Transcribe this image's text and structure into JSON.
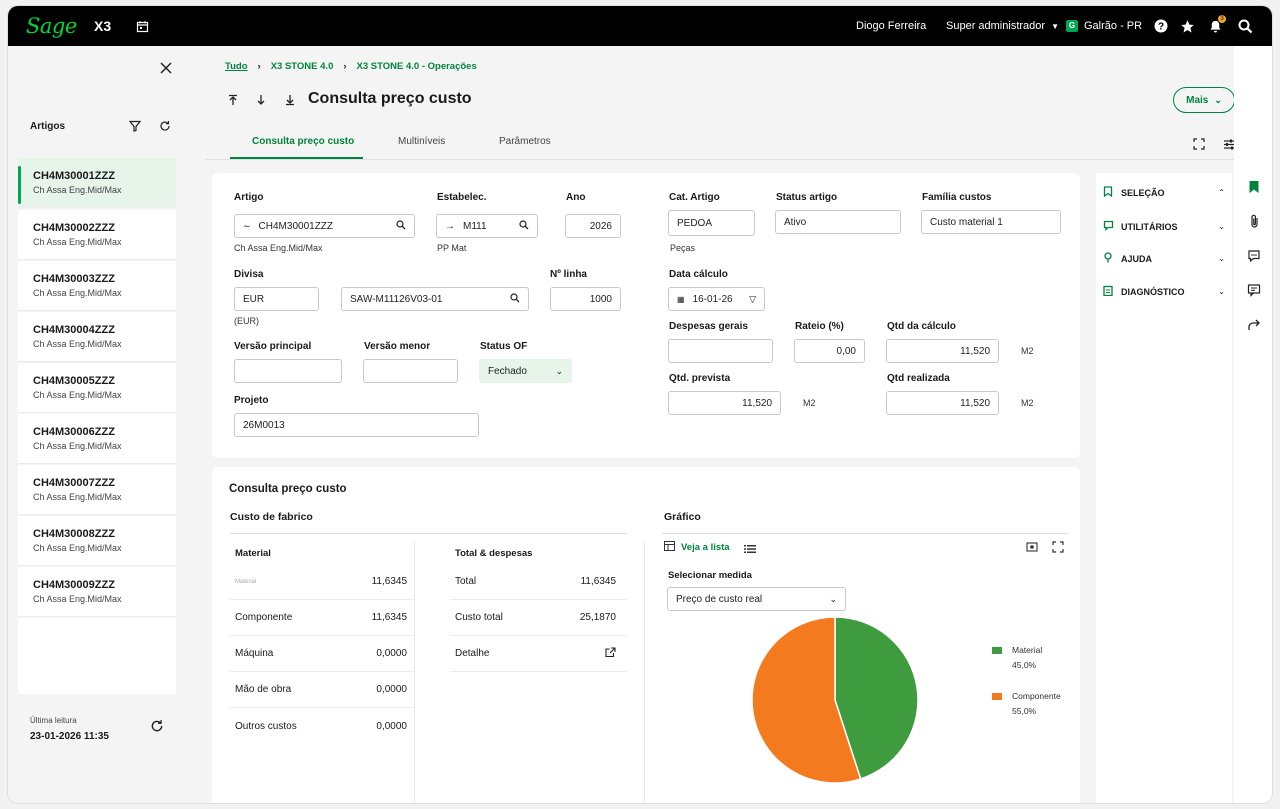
{
  "topbar": {
    "logo": "Sage",
    "product": "X3",
    "user": "Diogo Ferreira",
    "role": "Super administrador",
    "company_badge": "G",
    "company": "Galrão - PR",
    "notification_count": "3"
  },
  "sidebar": {
    "title": "Artigos",
    "items": [
      {
        "code": "CH4M30001ZZZ",
        "desc": "Ch Assa Eng.Mid/Max"
      },
      {
        "code": "CH4M30002ZZZ",
        "desc": "Ch Assa Eng.Mid/Max"
      },
      {
        "code": "CH4M30003ZZZ",
        "desc": "Ch Assa Eng.Mid/Max"
      },
      {
        "code": "CH4M30004ZZZ",
        "desc": "Ch Assa Eng.Mid/Max"
      },
      {
        "code": "CH4M30005ZZZ",
        "desc": "Ch Assa Eng.Mid/Max"
      },
      {
        "code": "CH4M30006ZZZ",
        "desc": "Ch Assa Eng.Mid/Max"
      },
      {
        "code": "CH4M30007ZZZ",
        "desc": "Ch Assa Eng.Mid/Max"
      },
      {
        "code": "CH4M30008ZZZ",
        "desc": "Ch Assa Eng.Mid/Max"
      },
      {
        "code": "CH4M30009ZZZ",
        "desc": "Ch Assa Eng.Mid/Max"
      }
    ],
    "last_read_label": "Última leitura",
    "last_read_value": "23-01-2026 11:35"
  },
  "breadcrumb": [
    "Tudo",
    "X3 STONE 4.0",
    "X3 STONE 4.0 - Operações"
  ],
  "page_title": "Consulta preço custo",
  "more_button": "Mais",
  "tabs": [
    "Consulta preço custo",
    "Multiníveis",
    "Parâmetros"
  ],
  "form": {
    "artigo": {
      "label": "Artigo",
      "value": "CH4M30001ZZZ",
      "sub": "Ch Assa Eng.Mid/Max"
    },
    "estabelec": {
      "label": "Estabelec.",
      "value": "M111",
      "sub": "PP Mat"
    },
    "ano": {
      "label": "Ano",
      "value": "2026"
    },
    "cat_artigo": {
      "label": "Cat. Artigo",
      "value": "PEDOA",
      "sub": "Peças"
    },
    "status_artigo": {
      "label": "Status artigo",
      "value": "Ativo"
    },
    "familia_custos": {
      "label": "Família custos",
      "value": "Custo material 1"
    },
    "divisa": {
      "label": "Divisa",
      "value": "EUR",
      "sub": "(EUR)"
    },
    "divisa_ref": {
      "value": "SAW-M11126V03-01"
    },
    "n_linha": {
      "label": "Nº linha",
      "value": "1000"
    },
    "data_calculo": {
      "label": "Data cálculo",
      "value": "16-01-26"
    },
    "versao_principal": {
      "label": "Versão principal",
      "value": ""
    },
    "versao_menor": {
      "label": "Versão menor",
      "value": ""
    },
    "status_of": {
      "label": "Status OF",
      "value": "Fechado"
    },
    "projeto": {
      "label": "Projeto",
      "value": "26M0013"
    },
    "despesas_gerais": {
      "label": "Despesas gerais",
      "value": ""
    },
    "rateio": {
      "label": "Rateio (%)",
      "value": "0,00"
    },
    "qtd_calculo": {
      "label": "Qtd da cálculo",
      "value": "11,520",
      "unit": "M2"
    },
    "qtd_prevista": {
      "label": "Qtd. prevista",
      "value": "11,520",
      "unit": "M2"
    },
    "qtd_realizada": {
      "label": "Qtd realizada",
      "value": "11,520",
      "unit": "M2"
    }
  },
  "panel": {
    "title": "Consulta preço custo",
    "custo_fabrico": "Custo de fabrico",
    "material_header": "Material",
    "material_rows": [
      {
        "label": "Material",
        "value": "11,6345"
      },
      {
        "label": "Componente",
        "value": "11,6345"
      },
      {
        "label": "Máquina",
        "value": "0,0000"
      },
      {
        "label": "Mão de obra",
        "value": "0,0000"
      },
      {
        "label": "Outros custos",
        "value": "0,0000"
      }
    ],
    "totais_header": "Total & despesas",
    "totais_rows": [
      {
        "label": "Total",
        "value": "11,6345"
      },
      {
        "label": "Custo total",
        "value": "25,1870"
      },
      {
        "label": "Detalhe",
        "value": ""
      }
    ],
    "grafico": "Gráfico",
    "view_list": "Veja a lista",
    "measure_label": "Selecionar medida",
    "measure_value": "Preço de custo real"
  },
  "chart_data": {
    "type": "pie",
    "categories": [
      "Material",
      "Componente"
    ],
    "values": [
      45.0,
      55.0
    ],
    "labels": [
      "45,0%",
      "55,0%"
    ],
    "colors": [
      "#3e9b3e",
      "#f47a1f"
    ],
    "legend": "right"
  },
  "right_panel": [
    {
      "label": "SELEÇÃO",
      "icon": "bookmark-icon",
      "chevron": "up"
    },
    {
      "label": "UTILITÁRIOS",
      "icon": "chat-icon",
      "chevron": "down"
    },
    {
      "label": "AJUDA",
      "icon": "pin-icon",
      "chevron": "down"
    },
    {
      "label": "DIAGNÓSTICO",
      "icon": "clipboard-icon",
      "chevron": "down"
    }
  ]
}
